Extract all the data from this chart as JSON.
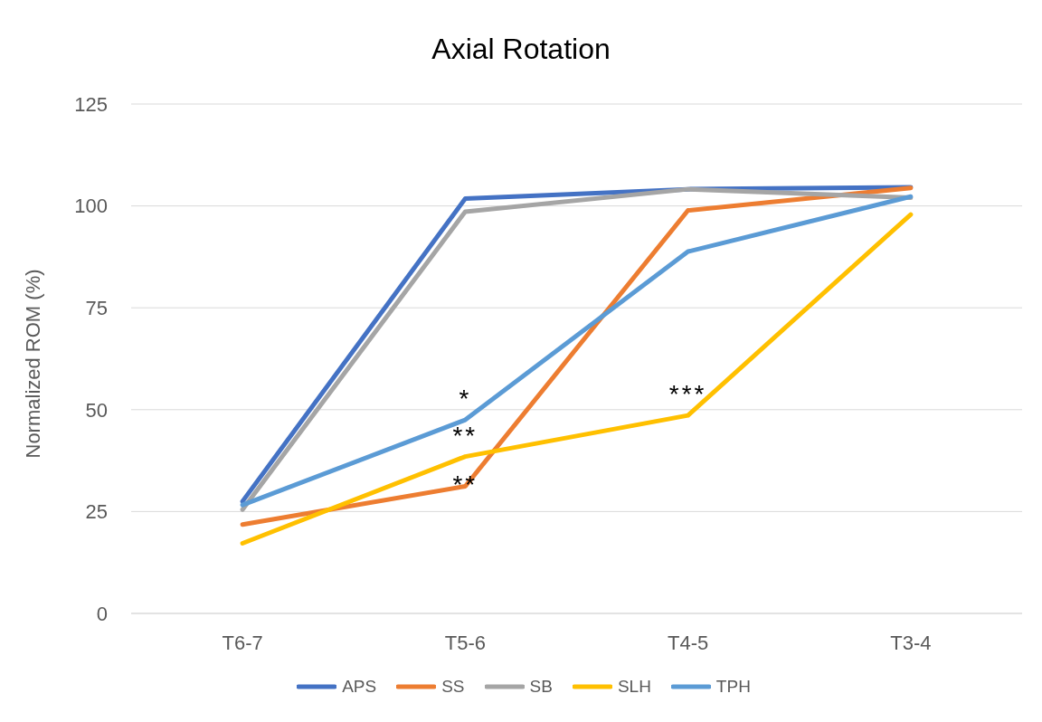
{
  "chart_data": {
    "type": "line",
    "title": "Axial Rotation",
    "ylabel": "Normalized ROM (%)",
    "categories": [
      "T6-7",
      "T5-6",
      "T4-5",
      "T3-4"
    ],
    "series": [
      {
        "name": "APS",
        "color": "#4472c4",
        "values": [
          27.5,
          101.8,
          104.1,
          104.6
        ]
      },
      {
        "name": "SS",
        "color": "#ed7d31",
        "values": [
          21.8,
          31.2,
          98.9,
          104.4
        ]
      },
      {
        "name": "SB",
        "color": "#a5a5a5",
        "values": [
          25.5,
          98.6,
          104.1,
          102
        ]
      },
      {
        "name": "SLH",
        "color": "#ffc000",
        "values": [
          17.2,
          38.5,
          48.6,
          97.9
        ]
      },
      {
        "name": "TPH",
        "color": "#5b9bd5",
        "values": [
          26.6,
          47.5,
          88.8,
          102.3
        ]
      }
    ],
    "annotations": [
      {
        "text": "*",
        "x": "T5-6",
        "y": 47.5
      },
      {
        "text": "**",
        "x": "T5-6",
        "y": 38.5
      },
      {
        "text": "**",
        "x": "T5-6",
        "y": 31.2
      },
      {
        "text": "***",
        "x": "T4-5",
        "y": 48.6
      }
    ],
    "ylim": [
      0,
      125
    ],
    "yticks": [
      0,
      25,
      50,
      75,
      100,
      125
    ],
    "grid": "y",
    "legend": "bottom",
    "marker": "none",
    "line_style": "solid"
  }
}
